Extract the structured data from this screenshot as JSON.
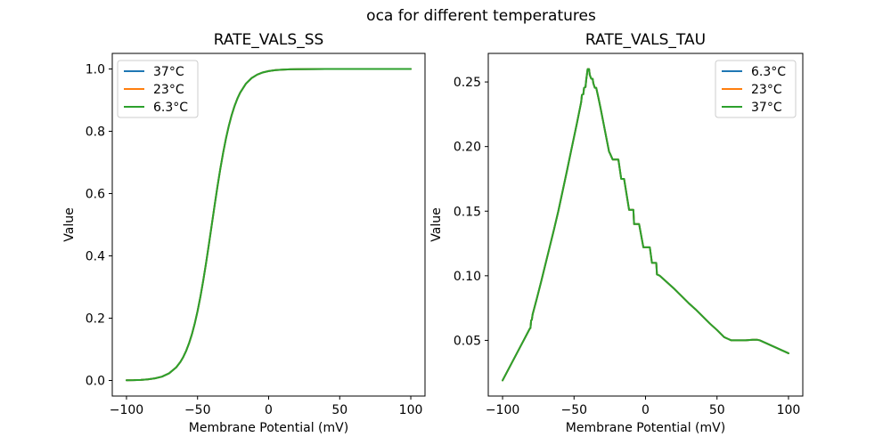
{
  "figure": {
    "suptitle": "oca for different temperatures",
    "background": "#ffffff"
  },
  "palette": {
    "blue": "#1f77b4",
    "orange": "#ff7f0e",
    "green": "#2ca02c"
  },
  "chart_data": [
    {
      "type": "line",
      "title": "RATE_VALS_SS",
      "xlabel": "Membrane Potential (mV)",
      "ylabel": "Value",
      "xlim": [
        -110,
        110
      ],
      "ylim": [
        -0.05,
        1.05
      ],
      "xticks": [
        -100,
        -50,
        0,
        50,
        100
      ],
      "xtick_labels": [
        "−100",
        "−50",
        "0",
        "50",
        "100"
      ],
      "yticks": [
        0.0,
        0.2,
        0.4,
        0.6,
        0.8,
        1.0
      ],
      "ytick_labels": [
        "0.0",
        "0.2",
        "0.4",
        "0.6",
        "0.8",
        "1.0"
      ],
      "grid": false,
      "legend": {
        "loc": "upper-left",
        "entries": [
          {
            "label": "37°C",
            "color": "#1f77b4"
          },
          {
            "label": "23°C",
            "color": "#ff7f0e"
          },
          {
            "label": "6.3°C",
            "color": "#2ca02c"
          }
        ]
      },
      "note": "All three temperature series overlap exactly; only the last-drawn green curve is visible. Sigmoid midpoint at -40 mV.",
      "x": [
        -100,
        -95,
        -90,
        -85,
        -80,
        -75,
        -70,
        -65,
        -62,
        -60,
        -58,
        -56,
        -54,
        -52,
        -50,
        -48,
        -46,
        -44,
        -42,
        -40,
        -38,
        -36,
        -34,
        -32,
        -30,
        -28,
        -26,
        -24,
        -22,
        -20,
        -16,
        -12,
        -8,
        -4,
        0,
        5,
        10,
        15,
        20,
        30,
        40,
        50,
        60,
        70,
        80,
        90,
        100
      ],
      "y_shared": [
        0.0006,
        0.001,
        0.0019,
        0.0036,
        0.0067,
        0.0124,
        0.023,
        0.0421,
        0.0601,
        0.0759,
        0.0953,
        0.1192,
        0.148,
        0.1824,
        0.2227,
        0.2689,
        0.3208,
        0.3775,
        0.4378,
        0.5,
        0.5622,
        0.6225,
        0.6792,
        0.7311,
        0.7773,
        0.8176,
        0.852,
        0.8808,
        0.9047,
        0.9241,
        0.9526,
        0.9707,
        0.982,
        0.989,
        0.9933,
        0.9964,
        0.998,
        0.999,
        0.9994,
        0.9998,
        0.9999,
        1.0,
        1.0,
        1.0,
        1.0,
        1.0,
        1.0
      ],
      "series": [
        {
          "name": "37°C",
          "color": "#1f77b4"
        },
        {
          "name": "23°C",
          "color": "#ff7f0e"
        },
        {
          "name": "6.3°C",
          "color": "#2ca02c"
        }
      ]
    },
    {
      "type": "line",
      "title": "RATE_VALS_TAU",
      "xlabel": "Membrane Potential (mV)",
      "ylabel": "Value",
      "xlim": [
        -110,
        110
      ],
      "ylim": [
        0.0069,
        0.2721
      ],
      "xticks": [
        -100,
        -50,
        0,
        50,
        100
      ],
      "xtick_labels": [
        "−100",
        "−50",
        "0",
        "50",
        "100"
      ],
      "yticks": [
        0.05,
        0.1,
        0.15,
        0.2,
        0.25
      ],
      "ytick_labels": [
        "0.05",
        "0.10",
        "0.15",
        "0.20",
        "0.25"
      ],
      "grid": false,
      "legend": {
        "loc": "upper-right",
        "entries": [
          {
            "label": "6.3°C",
            "color": "#1f77b4"
          },
          {
            "label": "23°C",
            "color": "#ff7f0e"
          },
          {
            "label": "37°C",
            "color": "#2ca02c"
          }
        ]
      },
      "note": "All three temperature series overlap exactly; only the last-drawn green curve is visible. Jagged stepped peak of ~0.26 at -40 mV.",
      "x": [
        -100,
        -95,
        -90,
        -85,
        -81,
        -80.5,
        -80,
        -79.5,
        -79,
        -76,
        -73,
        -70,
        -67,
        -64,
        -61,
        -58,
        -55,
        -52,
        -50,
        -48,
        -46,
        -45,
        -44.5,
        -43.5,
        -43,
        -42,
        -41.5,
        -40.5,
        -39.5,
        -39,
        -38,
        -37,
        -36.5,
        -35.5,
        -34.5,
        -33,
        -31.5,
        -30,
        -28.5,
        -27,
        -25.5,
        -25,
        -23,
        -19,
        -17,
        -15,
        -11.5,
        -8.5,
        -8,
        -4.5,
        -1.5,
        3,
        4.5,
        7.5,
        8,
        10,
        15,
        20,
        25,
        30,
        35,
        40,
        45,
        50,
        55,
        58,
        60,
        65,
        70,
        75,
        78,
        80,
        85,
        90,
        95,
        100
      ],
      "y_shared": [
        0.019,
        0.0295,
        0.04,
        0.0505,
        0.059,
        0.0595,
        0.0655,
        0.066,
        0.07,
        0.0825,
        0.0955,
        0.109,
        0.1225,
        0.136,
        0.15,
        0.1655,
        0.181,
        0.197,
        0.2075,
        0.218,
        0.229,
        0.2345,
        0.24,
        0.2405,
        0.2455,
        0.246,
        0.2515,
        0.26,
        0.26,
        0.2555,
        0.2525,
        0.2525,
        0.249,
        0.2455,
        0.2455,
        0.238,
        0.23,
        0.2215,
        0.213,
        0.2045,
        0.196,
        0.195,
        0.19,
        0.19,
        0.175,
        0.175,
        0.151,
        0.151,
        0.14,
        0.14,
        0.122,
        0.122,
        0.11,
        0.11,
        0.101,
        0.1,
        0.095,
        0.09,
        0.0845,
        0.079,
        0.074,
        0.0685,
        0.063,
        0.058,
        0.0525,
        0.051,
        0.05,
        0.05,
        0.05,
        0.0505,
        0.0505,
        0.05,
        0.0475,
        0.045,
        0.0425,
        0.04
      ],
      "series": [
        {
          "name": "6.3°C",
          "color": "#1f77b4"
        },
        {
          "name": "23°C",
          "color": "#ff7f0e"
        },
        {
          "name": "37°C",
          "color": "#2ca02c"
        }
      ]
    }
  ]
}
